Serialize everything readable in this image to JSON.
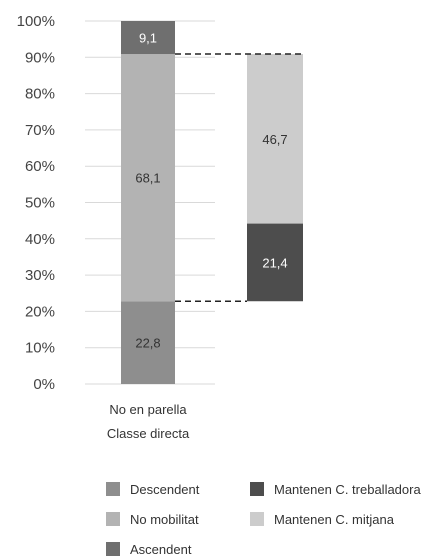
{
  "chart_data": {
    "type": "bar",
    "stacked": true,
    "ylim": [
      0,
      100
    ],
    "yticks": [
      "0%",
      "10%",
      "20%",
      "30%",
      "40%",
      "50%",
      "60%",
      "70%",
      "80%",
      "90%",
      "100%"
    ],
    "grid": true,
    "category_labels": [
      "No en parella",
      "Classe directa"
    ],
    "main_bar": {
      "segments": [
        {
          "name": "Descendent",
          "value": 22.8,
          "label": "22,8",
          "color": "#8e8e8e"
        },
        {
          "name": "No mobilitat",
          "value": 68.1,
          "label": "68,1",
          "color": "#b3b3b3"
        },
        {
          "name": "Ascendent",
          "value": 9.1,
          "label": "9,1",
          "color": "#6f6f6f"
        }
      ]
    },
    "breakdown_bar": {
      "of": "No mobilitat",
      "segments": [
        {
          "name": "Mantenen C. treballadora",
          "value": 21.4,
          "label": "21,4",
          "color": "#4d4d4d"
        },
        {
          "name": "Mantenen C. mitjana",
          "value": 46.7,
          "label": "46,7",
          "color": "#cccccc"
        }
      ]
    },
    "legend": {
      "placement": "bottom",
      "items": [
        {
          "label": "Descendent",
          "color": "#8e8e8e"
        },
        {
          "label": "Mantenen C. treballadora",
          "color": "#4d4d4d"
        },
        {
          "label": "No mobilitat",
          "color": "#b3b3b3"
        },
        {
          "label": "Mantenen C. mitjana",
          "color": "#cccccc"
        },
        {
          "label": "Ascendent",
          "color": "#6f6f6f"
        }
      ]
    }
  }
}
